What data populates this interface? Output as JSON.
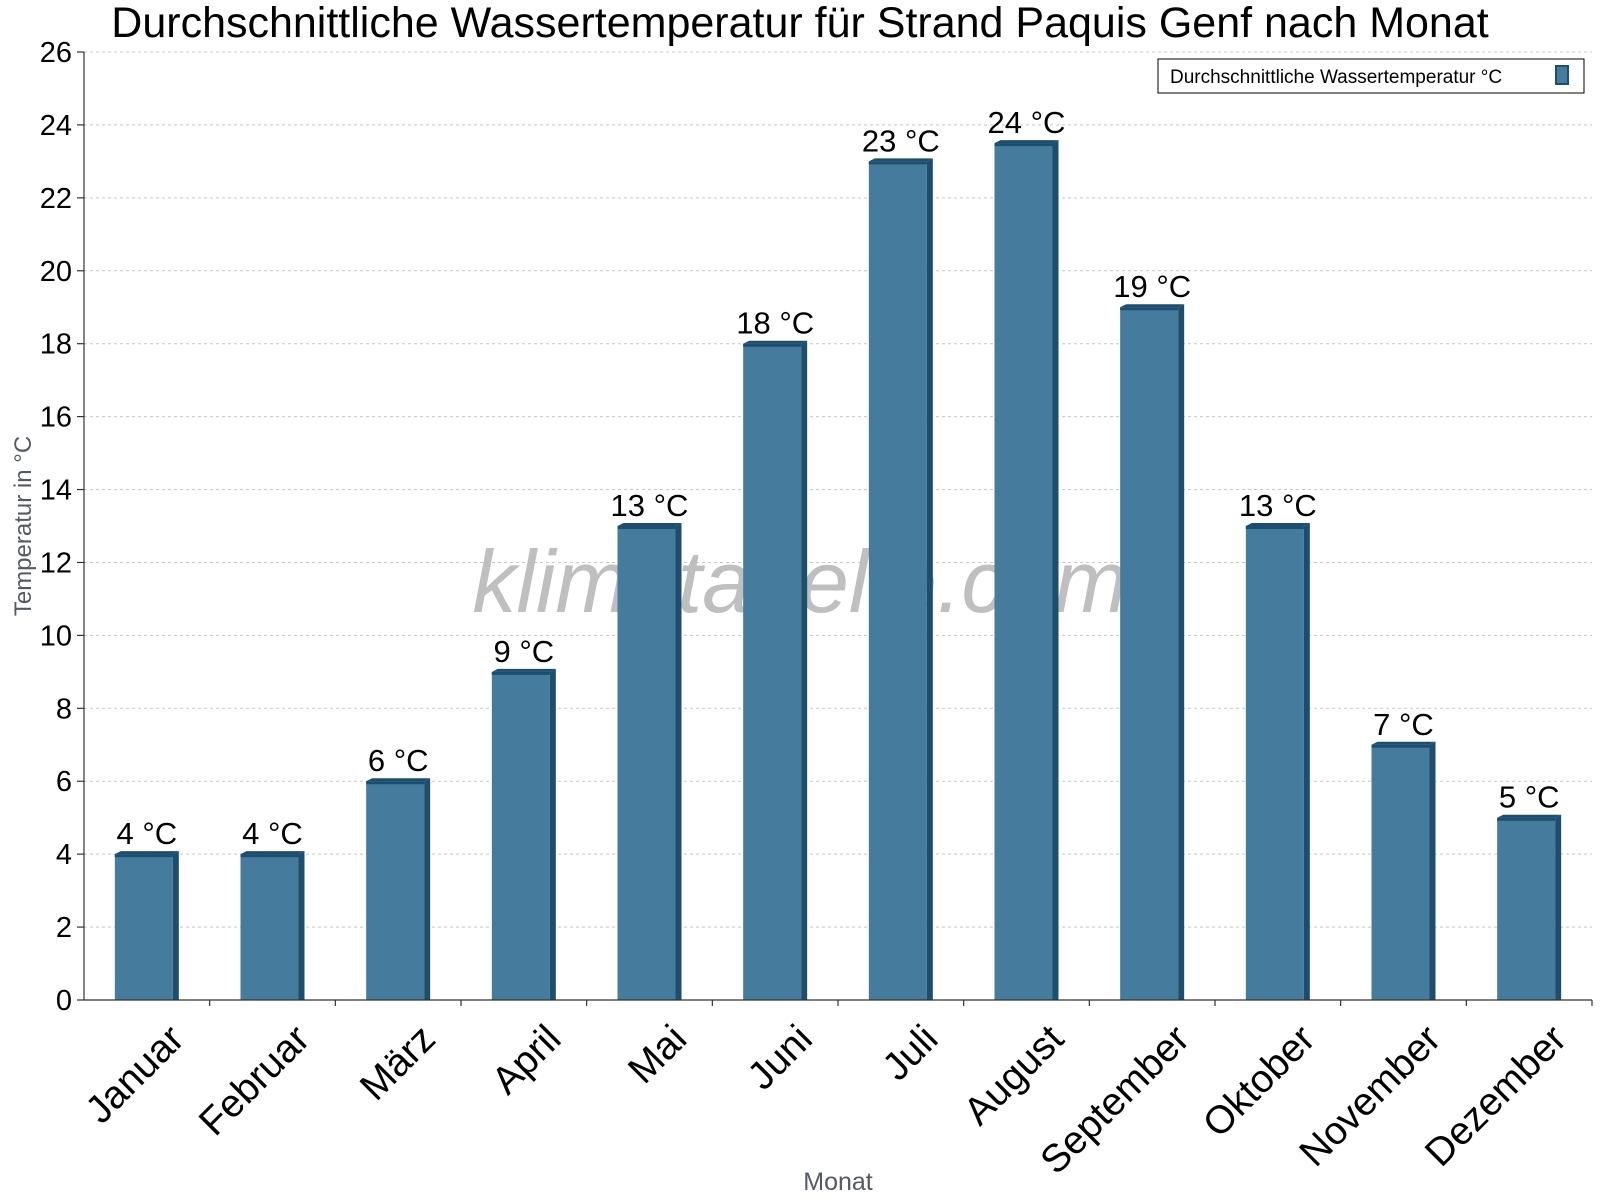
{
  "chart_data": {
    "type": "bar",
    "title": "Durchschnittliche Wassertemperatur für Strand Paquis Genf nach Monat",
    "xlabel": "Monat",
    "ylabel": "Temperatur in °C",
    "categories": [
      "Januar",
      "Februar",
      "März",
      "April",
      "Mai",
      "Juni",
      "Juli",
      "August",
      "September",
      "Oktober",
      "November",
      "Dezember"
    ],
    "series": [
      {
        "name": "Durchschnittliche Wassertemperatur °C",
        "values": [
          4,
          4,
          6,
          9,
          13,
          18,
          23,
          23.5,
          19,
          13,
          7,
          5
        ],
        "labels": [
          "4 °C",
          "4 °C",
          "6 °C",
          "9 °C",
          "13 °C",
          "18 °C",
          "23 °C",
          "24 °C",
          "19 °C",
          "13 °C",
          "7 °C",
          "5 °C"
        ]
      }
    ],
    "ylim": [
      0,
      26
    ],
    "yticks": [
      0,
      2,
      4,
      6,
      8,
      10,
      12,
      14,
      16,
      18,
      20,
      22,
      24,
      26
    ],
    "grid": true,
    "legend_position": "top-right",
    "watermark": "klimatabelle.com",
    "colors": {
      "bar": "#457b9d",
      "bar_side": "#1d4e6e",
      "bar_top": "#1d4e6e",
      "grid": "#c8c8c8",
      "axis": "#333333",
      "axis_title": "#555a60",
      "watermark": "#b4b4b4"
    }
  }
}
